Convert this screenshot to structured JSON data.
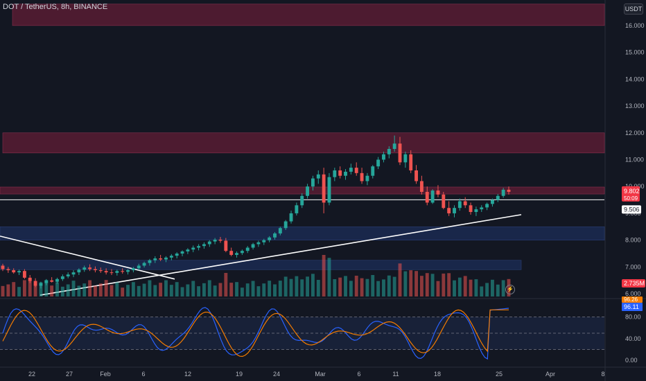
{
  "header": {
    "symbol": "DOT / TetherUS, 8h, BINANCE",
    "currency_button": "USDT"
  },
  "colors": {
    "bg": "#131722",
    "up": "#26a69a",
    "down": "#ef5350",
    "resistance_zone": "#5c1d35",
    "support_zone": "#1c2c55",
    "trendline": "#ffffff",
    "k_line": "#2962ff",
    "d_line": "#f57c00",
    "axis_text": "#b2b5be",
    "price_tag": "#f23645",
    "white_tag": "#ffffff"
  },
  "chart_data": {
    "type": "candlestick",
    "y_axis": {
      "ticks": [
        "16.000",
        "15.000",
        "14.000",
        "13.000",
        "12.000",
        "11.000",
        "10.000",
        "9.000",
        "8.000",
        "7.000",
        "6.000"
      ],
      "range": [
        5.9,
        16.9
      ]
    },
    "x_axis": {
      "ticks": [
        "22",
        "27",
        "Feb",
        "6",
        "12",
        "19",
        "24",
        "Mar",
        "6",
        "11",
        "18",
        "25",
        "Apr",
        "8"
      ]
    },
    "price_labels": {
      "last_price": "9.802",
      "countdown": "50:09",
      "line_price": "9.506",
      "volume": "2.735M"
    },
    "stoch_rsi": {
      "ticks": [
        "80.00",
        "40.00",
        "0.00"
      ],
      "k_value": "96.11",
      "d_value": "96.26",
      "range": [
        -10,
        110
      ],
      "levels": [
        80,
        50,
        20
      ]
    },
    "zones": [
      {
        "type": "resistance",
        "from": 16.0,
        "to": 16.8
      },
      {
        "type": "resistance",
        "from": 11.25,
        "to": 12.0
      },
      {
        "type": "resistance",
        "from": 9.72,
        "to": 9.98
      },
      {
        "type": "support",
        "from": 8.0,
        "to": 8.5
      },
      {
        "type": "support",
        "from": 6.9,
        "to": 7.25
      }
    ],
    "horizontal_line": 9.506,
    "candles_ohlc": [
      [
        7.05,
        7.12,
        6.85,
        6.92
      ],
      [
        6.92,
        7.0,
        6.78,
        6.88
      ],
      [
        6.88,
        6.95,
        6.75,
        6.8
      ],
      [
        6.8,
        6.9,
        6.7,
        6.85
      ],
      [
        6.85,
        6.92,
        6.55,
        6.6
      ],
      [
        6.6,
        6.7,
        6.4,
        6.48
      ],
      [
        6.48,
        6.58,
        6.25,
        6.3
      ],
      [
        6.3,
        6.45,
        6.2,
        6.4
      ],
      [
        6.4,
        6.55,
        6.32,
        6.5
      ],
      [
        6.5,
        6.62,
        6.42,
        6.45
      ],
      [
        6.45,
        6.6,
        6.38,
        6.55
      ],
      [
        6.55,
        6.72,
        6.48,
        6.65
      ],
      [
        6.65,
        6.8,
        6.58,
        6.72
      ],
      [
        6.72,
        6.88,
        6.62,
        6.8
      ],
      [
        6.8,
        6.95,
        6.7,
        6.9
      ],
      [
        6.9,
        7.05,
        6.82,
        6.98
      ],
      [
        6.98,
        7.1,
        6.85,
        6.92
      ],
      [
        6.92,
        7.02,
        6.8,
        6.88
      ],
      [
        6.88,
        6.98,
        6.78,
        6.85
      ],
      [
        6.85,
        6.95,
        6.72,
        6.8
      ],
      [
        6.8,
        6.92,
        6.7,
        6.78
      ],
      [
        6.78,
        6.9,
        6.68,
        6.85
      ],
      [
        6.85,
        6.95,
        6.75,
        6.82
      ],
      [
        6.82,
        6.92,
        6.72,
        6.88
      ],
      [
        6.88,
        7.0,
        6.8,
        6.95
      ],
      [
        6.95,
        7.12,
        6.88,
        7.05
      ],
      [
        7.05,
        7.2,
        6.98,
        7.15
      ],
      [
        7.15,
        7.3,
        7.05,
        7.25
      ],
      [
        7.25,
        7.4,
        7.15,
        7.32
      ],
      [
        7.32,
        7.45,
        7.22,
        7.28
      ],
      [
        7.28,
        7.4,
        7.18,
        7.35
      ],
      [
        7.35,
        7.48,
        7.25,
        7.42
      ],
      [
        7.42,
        7.55,
        7.32,
        7.5
      ],
      [
        7.5,
        7.62,
        7.4,
        7.58
      ],
      [
        7.58,
        7.7,
        7.48,
        7.65
      ],
      [
        7.65,
        7.8,
        7.55,
        7.72
      ],
      [
        7.72,
        7.85,
        7.62,
        7.78
      ],
      [
        7.78,
        7.92,
        7.68,
        7.85
      ],
      [
        7.85,
        8.0,
        7.75,
        7.95
      ],
      [
        7.95,
        8.08,
        7.85,
        8.02
      ],
      [
        8.02,
        8.12,
        7.9,
        7.98
      ],
      [
        7.98,
        8.08,
        7.55,
        7.6
      ],
      [
        7.6,
        7.72,
        7.4,
        7.45
      ],
      [
        7.45,
        7.58,
        7.35,
        7.52
      ],
      [
        7.52,
        7.65,
        7.45,
        7.6
      ],
      [
        7.6,
        7.78,
        7.52,
        7.72
      ],
      [
        7.72,
        7.9,
        7.65,
        7.85
      ],
      [
        7.85,
        7.98,
        7.75,
        7.92
      ],
      [
        7.92,
        8.05,
        7.82,
        8.0
      ],
      [
        8.0,
        8.15,
        7.92,
        8.1
      ],
      [
        8.1,
        8.3,
        8.02,
        8.25
      ],
      [
        8.25,
        8.5,
        8.18,
        8.45
      ],
      [
        8.45,
        8.75,
        8.38,
        8.7
      ],
      [
        8.7,
        9.1,
        8.62,
        9.0
      ],
      [
        9.0,
        9.4,
        8.92,
        9.3
      ],
      [
        9.3,
        9.75,
        9.2,
        9.65
      ],
      [
        9.65,
        10.1,
        9.55,
        10.0
      ],
      [
        10.0,
        10.4,
        9.85,
        10.3
      ],
      [
        10.3,
        10.6,
        10.1,
        10.45
      ],
      [
        10.45,
        10.7,
        9.0,
        9.4
      ],
      [
        9.4,
        10.5,
        9.3,
        10.35
      ],
      [
        10.35,
        10.7,
        10.2,
        10.6
      ],
      [
        10.6,
        10.75,
        10.3,
        10.4
      ],
      [
        10.4,
        10.65,
        10.25,
        10.55
      ],
      [
        10.55,
        10.85,
        10.45,
        10.7
      ],
      [
        10.7,
        10.9,
        10.4,
        10.5
      ],
      [
        10.5,
        10.7,
        10.1,
        10.2
      ],
      [
        10.2,
        10.5,
        10.05,
        10.4
      ],
      [
        10.4,
        10.8,
        10.3,
        10.75
      ],
      [
        10.75,
        11.1,
        10.65,
        11.0
      ],
      [
        11.0,
        11.3,
        10.9,
        11.2
      ],
      [
        11.2,
        11.5,
        11.05,
        11.4
      ],
      [
        11.4,
        11.9,
        11.3,
        11.6
      ],
      [
        11.6,
        11.85,
        10.8,
        10.9
      ],
      [
        10.9,
        11.3,
        10.7,
        11.2
      ],
      [
        11.2,
        11.35,
        10.5,
        10.6
      ],
      [
        10.6,
        10.8,
        10.1,
        10.2
      ],
      [
        10.2,
        10.4,
        9.7,
        9.8
      ],
      [
        9.8,
        10.0,
        9.3,
        9.4
      ],
      [
        9.4,
        9.9,
        9.35,
        9.85
      ],
      [
        9.85,
        10.05,
        9.6,
        9.7
      ],
      [
        9.7,
        9.8,
        9.15,
        9.2
      ],
      [
        9.2,
        9.45,
        8.9,
        9.0
      ],
      [
        9.0,
        9.3,
        8.85,
        9.2
      ],
      [
        9.2,
        9.55,
        9.1,
        9.45
      ],
      [
        9.45,
        9.6,
        9.2,
        9.3
      ],
      [
        9.3,
        9.4,
        8.95,
        9.05
      ],
      [
        9.05,
        9.25,
        8.9,
        9.15
      ],
      [
        9.15,
        9.3,
        9.05,
        9.22
      ],
      [
        9.22,
        9.4,
        9.12,
        9.35
      ],
      [
        9.35,
        9.55,
        9.25,
        9.5
      ],
      [
        9.5,
        9.72,
        9.42,
        9.65
      ],
      [
        9.65,
        9.95,
        9.58,
        9.88
      ],
      [
        9.88,
        10.0,
        9.7,
        9.8
      ]
    ]
  }
}
